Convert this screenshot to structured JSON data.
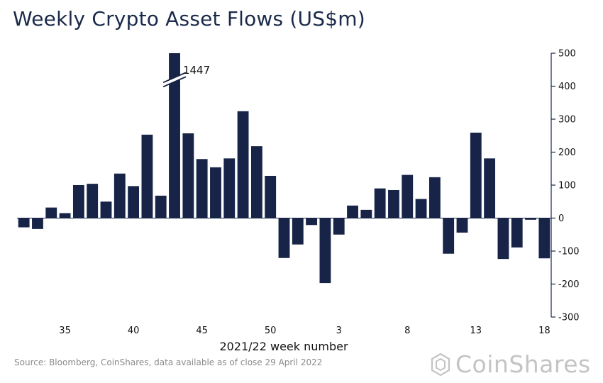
{
  "page": {
    "title": "Weekly Crypto Asset Flows (US$m)"
  },
  "footer": {
    "source": "Source: Bloomberg, CoinShares, data available as of close 29 April 2022",
    "logo_text": "CoinShares"
  },
  "colors": {
    "bar": "#172447",
    "axis": "#172447",
    "title": "#1b2a4a",
    "source": "#8a8a8a",
    "logo": "#c4c4c4"
  },
  "chart_data": {
    "type": "bar",
    "title": "Weekly Crypto Asset Flows (US$m)",
    "xlabel": "2021/22 week number",
    "ylabel": "",
    "ylim": [
      -300,
      500
    ],
    "y_ticks": [
      -300,
      -200,
      -100,
      0,
      100,
      200,
      300,
      400,
      500
    ],
    "y_axis_side": "right",
    "grid": false,
    "legend": "none",
    "categories": [
      "32",
      "33",
      "34",
      "35",
      "36",
      "37",
      "38",
      "39",
      "40",
      "41",
      "42",
      "43",
      "44",
      "45",
      "46",
      "47",
      "48",
      "49",
      "50",
      "51",
      "52",
      "1",
      "2",
      "3",
      "4",
      "5",
      "6",
      "7",
      "8",
      "9",
      "10",
      "11",
      "12",
      "13",
      "14",
      "15",
      "16",
      "17",
      "18"
    ],
    "x_tick_labels": [
      "35",
      "40",
      "45",
      "50",
      "3",
      "8",
      "13",
      "18"
    ],
    "values": [
      -28,
      -33,
      32,
      15,
      100,
      104,
      50,
      135,
      97,
      253,
      68,
      1447,
      257,
      179,
      154,
      181,
      324,
      218,
      128,
      -121,
      -80,
      -21,
      -197,
      -50,
      38,
      25,
      90,
      85,
      131,
      58,
      124,
      -108,
      -44,
      259,
      181,
      -124,
      -89,
      -5,
      -122
    ],
    "annotations": [
      {
        "category": "43",
        "label": "1447",
        "note": "axis break"
      }
    ]
  }
}
